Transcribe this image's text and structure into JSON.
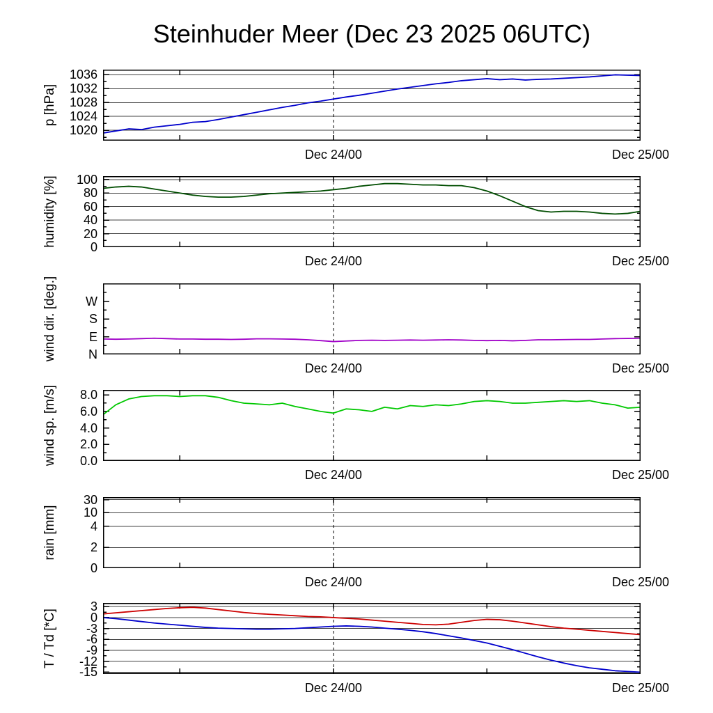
{
  "title": "Steinhuder Meer (Dec 23 2025 06UTC)",
  "x_axis": {
    "t_min": 0,
    "t_max": 42,
    "start_time": "Dec 23 06UTC",
    "tick_hours": [
      6,
      18,
      30,
      42
    ],
    "dashed_hour": 18,
    "labels": [
      {
        "hour": 18,
        "text": "Dec 24/00"
      },
      {
        "hour": 42,
        "text": "Dec 25/00"
      }
    ]
  },
  "chart_data": [
    {
      "id": "pressure",
      "type": "line",
      "ylabel": "p [hPa]",
      "ymin": 1017,
      "ymax": 1037.5,
      "yticks": [
        {
          "v": 1020,
          "label": "1020"
        },
        {
          "v": 1024,
          "label": "1024"
        },
        {
          "v": 1028,
          "label": "1028"
        },
        {
          "v": 1032,
          "label": "1032"
        },
        {
          "v": 1036,
          "label": "1036"
        }
      ],
      "yminor": [
        1018,
        1022,
        1026,
        1030,
        1034
      ],
      "grid": [
        1020,
        1024,
        1028,
        1032,
        1036
      ],
      "series": [
        {
          "name": "pressure",
          "color": "#0000cc",
          "x_start": 0,
          "x_step": 1,
          "values": [
            1019.2,
            1019.8,
            1020.4,
            1020.2,
            1020.9,
            1021.3,
            1021.7,
            1022.3,
            1022.5,
            1023.1,
            1023.8,
            1024.5,
            1025.2,
            1025.9,
            1026.6,
            1027.2,
            1027.9,
            1028.4,
            1029.0,
            1029.6,
            1030.1,
            1030.7,
            1031.3,
            1031.9,
            1032.4,
            1032.9,
            1033.4,
            1033.8,
            1034.3,
            1034.6,
            1034.9,
            1034.6,
            1034.8,
            1034.5,
            1034.7,
            1034.8,
            1035.0,
            1035.2,
            1035.4,
            1035.7,
            1036.0,
            1035.9,
            1035.8
          ]
        }
      ]
    },
    {
      "id": "humidity",
      "type": "line",
      "ylabel": "humidity [%]",
      "ymin": 0,
      "ymax": 105,
      "yticks": [
        {
          "v": 0,
          "label": "0"
        },
        {
          "v": 20,
          "label": "20"
        },
        {
          "v": 40,
          "label": "40"
        },
        {
          "v": 60,
          "label": "60"
        },
        {
          "v": 80,
          "label": "80"
        },
        {
          "v": 100,
          "label": "100"
        }
      ],
      "yminor": [
        10,
        30,
        50,
        70,
        90
      ],
      "grid": [
        20,
        40,
        60,
        80,
        100
      ],
      "series": [
        {
          "name": "humidity",
          "color": "#004d00",
          "x_start": 0,
          "x_step": 1,
          "values": [
            87,
            89,
            90,
            89,
            86,
            83,
            80,
            77,
            75,
            74,
            74,
            75,
            77,
            79,
            80,
            81,
            82,
            83,
            85,
            87,
            90,
            92,
            94,
            94,
            93,
            92,
            92,
            91,
            91,
            88,
            83,
            76,
            68,
            60,
            54,
            52,
            53,
            53,
            52,
            50,
            49,
            50,
            53
          ]
        }
      ]
    },
    {
      "id": "wind-direction",
      "type": "line",
      "ylabel": "wind dir. [deg.]",
      "ymin": 0,
      "ymax": 360,
      "yticks": [
        {
          "v": 0,
          "label": "N"
        },
        {
          "v": 90,
          "label": "E"
        },
        {
          "v": 180,
          "label": "S"
        },
        {
          "v": 270,
          "label": "W"
        }
      ],
      "yminor": [
        45,
        135,
        225,
        315
      ],
      "grid": [],
      "series": [
        {
          "name": "wind-direction",
          "color": "#a000c8",
          "x_start": 0,
          "x_step": 1,
          "values": [
            78,
            77,
            78,
            80,
            82,
            80,
            78,
            78,
            77,
            77,
            76,
            77,
            79,
            79,
            78,
            77,
            74,
            70,
            65,
            68,
            71,
            72,
            71,
            72,
            73,
            72,
            73,
            74,
            73,
            71,
            70,
            71,
            69,
            71,
            74,
            74,
            75,
            76,
            76,
            78,
            80,
            81,
            82
          ]
        }
      ]
    },
    {
      "id": "wind-speed",
      "type": "line",
      "ylabel": "wind sp. [m/s]",
      "ymin": 0,
      "ymax": 8.6,
      "yticks": [
        {
          "v": 0,
          "label": "0.0"
        },
        {
          "v": 2,
          "label": "2.0"
        },
        {
          "v": 4,
          "label": "4.0"
        },
        {
          "v": 6,
          "label": "6.0"
        },
        {
          "v": 8,
          "label": "8.0"
        }
      ],
      "yminor": [
        1,
        3,
        5,
        7
      ],
      "grid": [],
      "series": [
        {
          "name": "wind-speed",
          "color": "#00c800",
          "x_start": 0,
          "x_step": 1,
          "values": [
            5.6,
            6.8,
            7.5,
            7.8,
            7.9,
            7.9,
            7.8,
            7.9,
            7.9,
            7.7,
            7.3,
            7.0,
            6.9,
            6.8,
            7.0,
            6.6,
            6.3,
            6.0,
            5.8,
            6.3,
            6.2,
            6.0,
            6.5,
            6.3,
            6.7,
            6.6,
            6.8,
            6.7,
            6.9,
            7.2,
            7.3,
            7.2,
            7.0,
            7.0,
            7.1,
            7.2,
            7.3,
            7.2,
            7.3,
            7.0,
            6.8,
            6.4,
            6.5
          ]
        }
      ]
    },
    {
      "id": "rain",
      "type": "line",
      "ylabel": "rain [mm]",
      "y_scale_points": [
        [
          0,
          0
        ],
        [
          2,
          0.29
        ],
        [
          4,
          0.59
        ],
        [
          10,
          0.78
        ],
        [
          30,
          0.965
        ]
      ],
      "yticks": [
        {
          "v": 0,
          "label": "0"
        },
        {
          "v": 2,
          "label": "2"
        },
        {
          "v": 4,
          "label": "4"
        },
        {
          "v": 10,
          "label": "10"
        },
        {
          "v": 30,
          "label": "30"
        }
      ],
      "yminor": [],
      "grid": [
        2,
        4,
        10,
        30
      ],
      "series": [
        {
          "name": "rain",
          "color": "#0000cc",
          "x_start": 0,
          "x_step": 42,
          "values": [
            0,
            0
          ]
        }
      ]
    },
    {
      "id": "temperature",
      "type": "line",
      "ylabel": "T / Td [*C]",
      "ymin": -15.5,
      "ymax": 4,
      "yticks": [
        {
          "v": 3,
          "label": "3"
        },
        {
          "v": 0,
          "label": "0"
        },
        {
          "v": -3,
          "label": "-3"
        },
        {
          "v": -6,
          "label": "-6"
        },
        {
          "v": -9,
          "label": "-9"
        },
        {
          "v": -12,
          "label": "-12"
        },
        {
          "v": -15,
          "label": "-15"
        }
      ],
      "yminor": [
        1.5,
        -1.5,
        -4.5,
        -7.5,
        -10.5,
        -13.5
      ],
      "grid": [
        3,
        0,
        -3,
        -6,
        -9,
        -12,
        -15
      ],
      "series": [
        {
          "name": "temperature",
          "color": "#cc0000",
          "x_start": 0,
          "x_step": 1,
          "values": [
            1.0,
            1.3,
            1.6,
            1.9,
            2.2,
            2.5,
            2.7,
            2.8,
            2.6,
            2.2,
            1.8,
            1.4,
            1.1,
            0.9,
            0.7,
            0.5,
            0.3,
            0.2,
            0.0,
            -0.2,
            -0.4,
            -0.7,
            -1.0,
            -1.3,
            -1.6,
            -1.9,
            -2.0,
            -1.8,
            -1.3,
            -0.8,
            -0.5,
            -0.6,
            -1.0,
            -1.5,
            -2.0,
            -2.5,
            -2.9,
            -3.2,
            -3.5,
            -3.8,
            -4.1,
            -4.4,
            -4.7
          ]
        },
        {
          "name": "dewpoint",
          "color": "#0000cc",
          "x_start": 0,
          "x_step": 1,
          "values": [
            0.0,
            -0.3,
            -0.7,
            -1.1,
            -1.5,
            -1.8,
            -2.1,
            -2.4,
            -2.7,
            -2.9,
            -3.0,
            -3.1,
            -3.2,
            -3.2,
            -3.1,
            -3.0,
            -2.8,
            -2.6,
            -2.4,
            -2.3,
            -2.4,
            -2.6,
            -2.9,
            -3.2,
            -3.5,
            -3.9,
            -4.4,
            -5.0,
            -5.6,
            -6.3,
            -7.0,
            -7.9,
            -8.8,
            -9.8,
            -10.8,
            -11.7,
            -12.5,
            -13.2,
            -13.8,
            -14.2,
            -14.6,
            -14.8,
            -15.0
          ]
        }
      ]
    }
  ],
  "style": {
    "grid_color": "#404040",
    "axis_color": "#000000",
    "dashed_line_color": "#000000"
  }
}
